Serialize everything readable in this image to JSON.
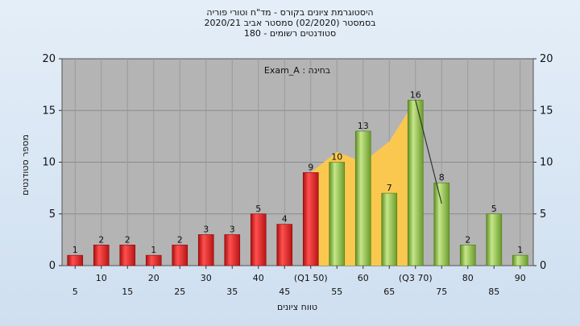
{
  "chart_data": {
    "type": "bar",
    "title_lines": [
      "היסטוגרמת ציונים בקורס - מד\"ח וטורי פוריה",
      "בסמסטר  (02/2020)  סמסטר אביב 2020/21",
      "סטודנטים רשומים - 180"
    ],
    "exam_label": "בחינה : Exam_A",
    "xlabel": "טווח ציונים",
    "ylabel": "מספר סטודנטים",
    "ylim": [
      0,
      20
    ],
    "yticks": [
      0,
      5,
      10,
      15,
      20
    ],
    "grid": true,
    "categories": [
      "5",
      "10",
      "15",
      "20",
      "25",
      "30",
      "35",
      "40",
      "45",
      "(Q1 50)",
      "55",
      "60",
      "65",
      "(Q3 70)",
      "75",
      "80",
      "85",
      "90"
    ],
    "values": [
      1,
      2,
      2,
      1,
      2,
      3,
      3,
      5,
      4,
      9,
      10,
      13,
      7,
      16,
      8,
      2,
      5,
      1
    ],
    "bar_colors": [
      "#dd2222",
      "#dd2222",
      "#dd2222",
      "#dd2222",
      "#dd2222",
      "#dd2222",
      "#dd2222",
      "#dd2222",
      "#dd2222",
      "#dd2222",
      "#8cc63f",
      "#8cc63f",
      "#8cc63f",
      "#8cc63f",
      "#8cc63f",
      "#8cc63f",
      "#8cc63f",
      "#8cc63f"
    ],
    "quartile_area": {
      "color": "#ffc94a",
      "points": [
        [
          9,
          9
        ],
        [
          10,
          11
        ],
        [
          11,
          10
        ],
        [
          12,
          12
        ],
        [
          13,
          16
        ]
      ]
    },
    "trend_line": {
      "color": "#333333",
      "points": [
        [
          13,
          16
        ],
        [
          14,
          6
        ]
      ]
    }
  }
}
